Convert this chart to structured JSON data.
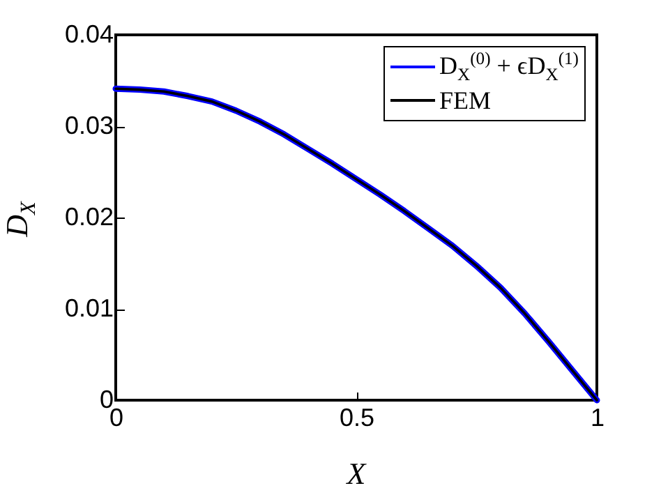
{
  "chart_data": {
    "type": "line",
    "xlabel": "X",
    "ylabel": "D$_{X}$",
    "x": [
      0,
      0.05,
      0.1,
      0.15,
      0.2,
      0.25,
      0.3,
      0.35,
      0.4,
      0.45,
      0.5,
      0.55,
      0.6,
      0.65,
      0.7,
      0.75,
      0.8,
      0.85,
      0.9,
      0.95,
      1
    ],
    "series": [
      {
        "name": "D$_{X}$$^{(0)}$ + ϵD$_{X}$$^{(1)}$",
        "color": "#0000ff",
        "values": [
          0.0341,
          0.034,
          0.0338,
          0.0333,
          0.0327,
          0.0317,
          0.0305,
          0.0291,
          0.0275,
          0.0259,
          0.0242,
          0.0225,
          0.0207,
          0.0188,
          0.0169,
          0.0147,
          0.0123,
          0.0095,
          0.0064,
          0.0032,
          0
        ]
      },
      {
        "name": "FEM",
        "color": "#000000",
        "values": [
          0.0341,
          0.034,
          0.0338,
          0.0333,
          0.0327,
          0.0317,
          0.0305,
          0.0291,
          0.0275,
          0.0259,
          0.0242,
          0.0225,
          0.0207,
          0.0188,
          0.0169,
          0.0147,
          0.0123,
          0.0095,
          0.0064,
          0.0032,
          0
        ]
      }
    ],
    "xlim": [
      0,
      1
    ],
    "xticks": [
      0,
      0.5,
      1
    ],
    "ylim": [
      0,
      0.04
    ],
    "yticks": [
      0,
      0.01,
      0.02,
      0.03,
      0.04
    ],
    "legend": "top right",
    "grid": false,
    "marker": "none",
    "line_style": "solid"
  }
}
